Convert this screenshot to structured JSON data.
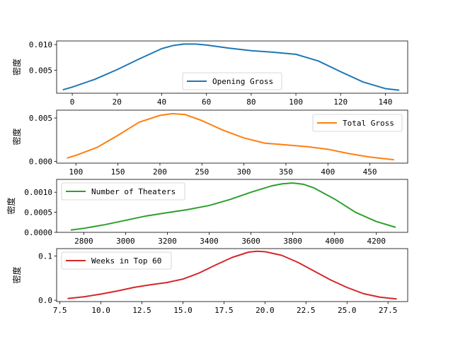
{
  "chart_data": [
    {
      "type": "line",
      "series_name": "Opening Gross",
      "color": "#1f77b4",
      "ylabel": "密度",
      "xlim": [
        -7,
        150
      ],
      "ylim": [
        0.0005,
        0.0107
      ],
      "xticks": [
        0,
        20,
        40,
        60,
        80,
        100,
        120,
        140
      ],
      "xtick_labels": [
        "0",
        "20",
        "40",
        "60",
        "80",
        "100",
        "120",
        "140"
      ],
      "yticks": [
        0.005,
        0.01
      ],
      "ytick_labels": [
        "0.005",
        "0.010"
      ],
      "legend_loc": "lower-center",
      "x": [
        -4,
        0,
        10,
        20,
        30,
        40,
        45,
        50,
        55,
        60,
        70,
        80,
        90,
        100,
        110,
        120,
        130,
        140,
        146
      ],
      "y": [
        0.0012,
        0.0017,
        0.0032,
        0.0051,
        0.0072,
        0.0092,
        0.0098,
        0.0101,
        0.0101,
        0.0099,
        0.0093,
        0.0088,
        0.0085,
        0.0081,
        0.0068,
        0.0047,
        0.0027,
        0.0014,
        0.0011
      ]
    },
    {
      "type": "line",
      "series_name": "Total Gross",
      "color": "#ff7f0e",
      "ylabel": "密度",
      "xlim": [
        77,
        495
      ],
      "ylim": [
        -0.0002,
        0.0059
      ],
      "xticks": [
        100,
        150,
        200,
        250,
        300,
        350,
        400,
        450
      ],
      "xtick_labels": [
        "100",
        "150",
        "200",
        "250",
        "300",
        "350",
        "400",
        "450"
      ],
      "yticks": [
        0.0,
        0.005
      ],
      "ytick_labels": [
        "0.000",
        "0.005"
      ],
      "legend_loc": "upper-right",
      "x": [
        90,
        100,
        125,
        150,
        175,
        200,
        215,
        230,
        250,
        275,
        300,
        325,
        350,
        375,
        400,
        425,
        450,
        478
      ],
      "y": [
        0.0004,
        0.0007,
        0.0016,
        0.003,
        0.0045,
        0.0053,
        0.0055,
        0.0054,
        0.0047,
        0.0036,
        0.0027,
        0.0021,
        0.0019,
        0.0017,
        0.0014,
        0.0009,
        0.0005,
        0.0002
      ]
    },
    {
      "type": "line",
      "series_name": "Number of Theaters",
      "color": "#2ca02c",
      "ylabel": "密度",
      "xlim": [
        2670,
        4350
      ],
      "ylim": [
        0.0,
        0.00132
      ],
      "xticks": [
        2800,
        3000,
        3200,
        3400,
        3600,
        3800,
        4000,
        4200
      ],
      "xtick_labels": [
        "2800",
        "3000",
        "3200",
        "3400",
        "3600",
        "3800",
        "4000",
        "4200"
      ],
      "yticks": [
        0.0,
        0.0005,
        0.001
      ],
      "ytick_labels": [
        "0.0000",
        "0.0005",
        "0.0010"
      ],
      "legend_loc": "upper-left",
      "x": [
        2740,
        2800,
        2900,
        3000,
        3100,
        3200,
        3300,
        3400,
        3500,
        3600,
        3700,
        3750,
        3800,
        3850,
        3900,
        4000,
        4100,
        4200,
        4290
      ],
      "y": [
        6e-05,
        0.0001,
        0.00019,
        0.0003,
        0.00041,
        0.00049,
        0.00057,
        0.00067,
        0.00082,
        0.001,
        0.00116,
        0.00121,
        0.00123,
        0.0012,
        0.00111,
        0.00083,
        0.0005,
        0.00027,
        0.00013
      ]
    },
    {
      "type": "line",
      "series_name": "Weeks in Top 60",
      "color": "#d62728",
      "ylabel": "密度",
      "xlim": [
        7.3,
        28.7
      ],
      "ylim": [
        -0.003,
        0.117
      ],
      "xticks": [
        7.5,
        10.0,
        12.5,
        15.0,
        17.5,
        20.0,
        22.5,
        25.0,
        27.5
      ],
      "xtick_labels": [
        "7.5",
        "10.0",
        "12.5",
        "15.0",
        "17.5",
        "20.0",
        "22.5",
        "25.0",
        "27.5"
      ],
      "yticks": [
        0.0,
        0.1
      ],
      "ytick_labels": [
        "0.0",
        "0.1"
      ],
      "legend_loc": "upper-left",
      "x": [
        8,
        9,
        10,
        11,
        12,
        13,
        14,
        15,
        16,
        17,
        18,
        19,
        19.5,
        20,
        21,
        22,
        23,
        24,
        25,
        26,
        27,
        28
      ],
      "y": [
        0.004,
        0.008,
        0.014,
        0.021,
        0.029,
        0.035,
        0.04,
        0.048,
        0.062,
        0.08,
        0.097,
        0.109,
        0.111,
        0.11,
        0.102,
        0.086,
        0.066,
        0.046,
        0.029,
        0.015,
        0.007,
        0.003
      ]
    }
  ]
}
